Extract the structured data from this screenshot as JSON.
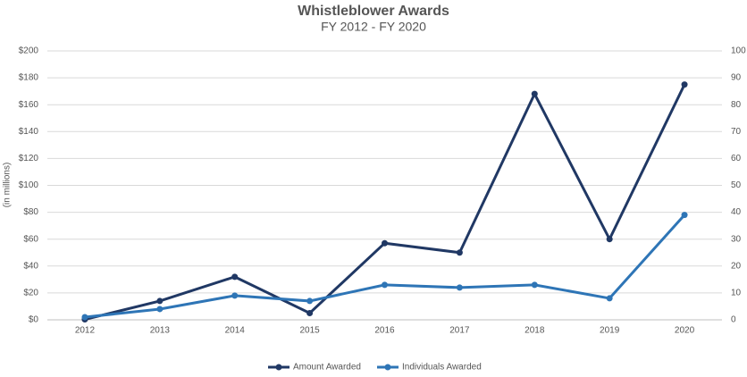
{
  "chart_data": {
    "type": "line",
    "title": "Whistleblower Awards",
    "subtitle": "FY 2012 - FY 2020",
    "y_label": "(in millions)",
    "categories": [
      "2012",
      "2013",
      "2014",
      "2015",
      "2016",
      "2017",
      "2018",
      "2019",
      "2020"
    ],
    "series": [
      {
        "name": "Amount Awarded",
        "color": "#203864",
        "values": [
          0.3,
          14,
          32,
          5,
          57,
          50,
          168,
          60,
          175
        ]
      },
      {
        "name": "Individuals Awarded",
        "color": "#2e75b6",
        "axis": "y2",
        "values": [
          1,
          4,
          9,
          7,
          13,
          12,
          13,
          8,
          39
        ]
      }
    ],
    "ylim": [
      0,
      200
    ],
    "yticks": [
      {
        "value": 0,
        "label": "$0"
      },
      {
        "value": 20,
        "label": "$20"
      },
      {
        "value": 40,
        "label": "$40"
      },
      {
        "value": 60,
        "label": "$60"
      },
      {
        "value": 80,
        "label": "$80"
      },
      {
        "value": 100,
        "label": "$100"
      },
      {
        "value": 120,
        "label": "$120"
      },
      {
        "value": 140,
        "label": "$140"
      },
      {
        "value": 160,
        "label": "$160"
      },
      {
        "value": 180,
        "label": "$180"
      },
      {
        "value": 200,
        "label": "$200"
      }
    ],
    "y2lim": [
      0,
      100
    ],
    "y2ticks": [
      0,
      10,
      20,
      30,
      40,
      50,
      60,
      70,
      80,
      90,
      100
    ],
    "grid": true,
    "legend": "bottom"
  }
}
